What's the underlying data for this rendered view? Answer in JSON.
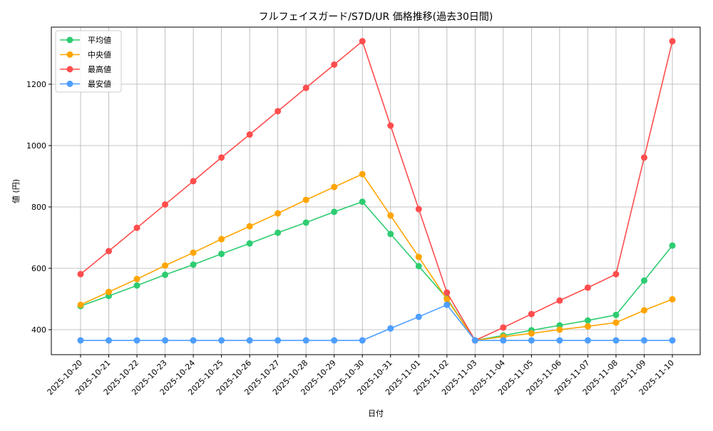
{
  "chart_data": {
    "type": "line",
    "title": "フルフェイスガード/S7D/UR 価格推移(過去30日間)",
    "xlabel": "日付",
    "ylabel": "値 (円)",
    "ylim": [
      320,
      1385
    ],
    "yticks": [
      400,
      600,
      800,
      1000,
      1200
    ],
    "grid": true,
    "legend_position": "top-left",
    "categories": [
      "2025-10-20",
      "2025-10-21",
      "2025-10-22",
      "2025-10-23",
      "2025-10-24",
      "2025-10-25",
      "2025-10-26",
      "2025-10-27",
      "2025-10-28",
      "2025-10-29",
      "2025-10-30",
      "2025-10-31",
      "2025-11-01",
      "2025-11-02",
      "2025-11-03",
      "2025-11-04",
      "2025-11-05",
      "2025-11-06",
      "2025-11-07",
      "2025-11-08",
      "2025-11-09",
      "2025-11-10"
    ],
    "series": [
      {
        "name": "平均値",
        "color": "#2ecc71",
        "values": [
          477,
          510,
          544,
          579,
          612,
          647,
          681,
          716,
          749,
          784,
          817,
          712,
          607,
          502,
          365,
          381,
          398,
          414,
          430,
          448,
          560,
          674
        ]
      },
      {
        "name": "中央値",
        "color": "#ffa500",
        "values": [
          481,
          523,
          565,
          609,
          651,
          695,
          737,
          779,
          823,
          865,
          907,
          772,
          637,
          499,
          365,
          377,
          388,
          400,
          411,
          423,
          463,
          499
        ]
      },
      {
        "name": "最高値",
        "color": "#ff4d4d",
        "values": [
          581,
          656,
          732,
          808,
          884,
          961,
          1036,
          1112,
          1188,
          1264,
          1340,
          1065,
          793,
          521,
          365,
          407,
          451,
          495,
          537,
          581,
          961,
          1340
        ]
      },
      {
        "name": "最安値",
        "color": "#4d9eff",
        "values": [
          365,
          365,
          365,
          365,
          365,
          365,
          365,
          365,
          365,
          365,
          365,
          404,
          442,
          481,
          365,
          365,
          365,
          365,
          365,
          365,
          365,
          365
        ]
      }
    ]
  }
}
